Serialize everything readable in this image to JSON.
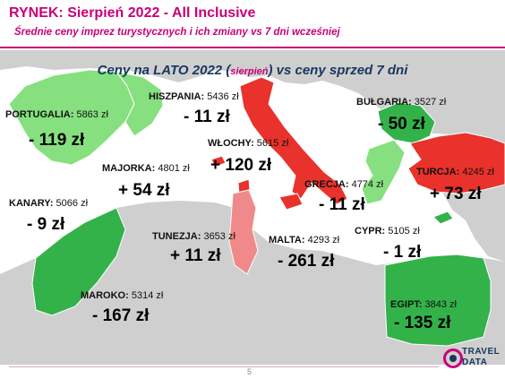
{
  "header": {
    "title": "RYNEK: Sierpień 2022 - All Inclusive",
    "subtitle": "Średnie ceny imprez turystycznych i ich zmiany vs 7 dni wcześniej"
  },
  "map": {
    "heading_before": "Ceny na LATO 2022 (",
    "heading_small": "sierpień",
    "heading_after": ") vs ceny sprzed 7 dni",
    "colors": {
      "increase": "#e8322b",
      "increase_light": "#f08a8a",
      "decrease": "#33b24a",
      "decrease_light": "#86e07f",
      "land": "#cfcfcf",
      "sea": "#ffffff"
    },
    "destinations": [
      {
        "id": "portugalia",
        "name": "PORTUGALIA:",
        "price": "5863 zł",
        "change": "- 119 zł",
        "trend": "decrease"
      },
      {
        "id": "hiszpania",
        "name": "HISZPANIA:",
        "price": "5436 zł",
        "change": "- 11 zł",
        "trend": "decrease"
      },
      {
        "id": "wlochy",
        "name": "WŁOCHY:",
        "price": "5615 zł",
        "change": "+ 120 zł",
        "trend": "increase"
      },
      {
        "id": "bulgaria",
        "name": "BUŁGARIA:",
        "price": "3527 zł",
        "change": "- 50 zł",
        "trend": "decrease"
      },
      {
        "id": "majorka",
        "name": "MAJORKA:",
        "price": "4801 zł",
        "change": "+ 54 zł",
        "trend": "increase"
      },
      {
        "id": "turcja",
        "name": "TURCJA:",
        "price": "4245 zł",
        "change": "+ 73 zł",
        "trend": "increase"
      },
      {
        "id": "grecja",
        "name": "GRECJA:",
        "price": "4774 zł",
        "change": "- 11 zł",
        "trend": "decrease"
      },
      {
        "id": "kanary",
        "name": "KANARY:",
        "price": "5066 zł",
        "change": "- 9 zł",
        "trend": "decrease"
      },
      {
        "id": "tunezja",
        "name": "TUNEZJA:",
        "price": "3653 zł",
        "change": "+ 11 zł",
        "trend": "increase"
      },
      {
        "id": "malta",
        "name": "MALTA:",
        "price": "4293 zł",
        "change": "- 261 zł",
        "trend": "decrease"
      },
      {
        "id": "cypr",
        "name": "CYPR:",
        "price": "5105 zł",
        "change": "- 1 zł",
        "trend": "decrease"
      },
      {
        "id": "maroko",
        "name": "MAROKO:",
        "price": "5314 zł",
        "change": "- 167 zł",
        "trend": "decrease"
      },
      {
        "id": "egipt",
        "name": "EGIPT:",
        "price": "3843 zł",
        "change": "- 135 zł",
        "trend": "decrease"
      }
    ]
  },
  "footer": {
    "page_number": "5",
    "logo_line1": "TRAVEL",
    "logo_line2": "DATA"
  }
}
